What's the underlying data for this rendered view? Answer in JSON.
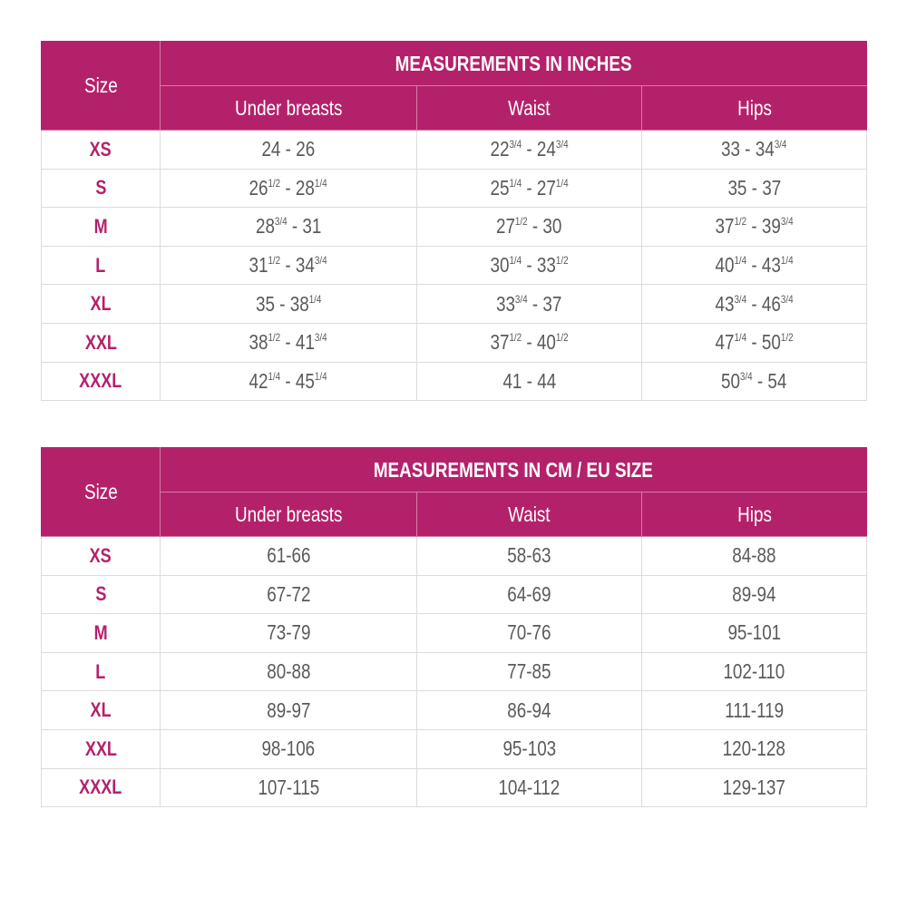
{
  "colors": {
    "accent": "#b4216b",
    "text": "#5a5a5a"
  },
  "tables": [
    {
      "size_header": "Size",
      "group_header": "MEASUREMENTS IN INCHES",
      "columns": [
        "Under breasts",
        "Waist",
        "Hips"
      ],
      "rows": [
        {
          "size": "XS",
          "cells": [
            [
              {
                "n": "24",
                "f": ""
              },
              {
                "n": "26",
                "f": ""
              }
            ],
            [
              {
                "n": "22",
                "f": "3/4"
              },
              {
                "n": "24",
                "f": "3/4"
              }
            ],
            [
              {
                "n": "33",
                "f": ""
              },
              {
                "n": "34",
                "f": "3/4"
              }
            ]
          ]
        },
        {
          "size": "S",
          "cells": [
            [
              {
                "n": "26",
                "f": "1/2"
              },
              {
                "n": "28",
                "f": "1/4"
              }
            ],
            [
              {
                "n": "25",
                "f": "1/4"
              },
              {
                "n": "27",
                "f": "1/4"
              }
            ],
            [
              {
                "n": "35",
                "f": ""
              },
              {
                "n": "37",
                "f": ""
              }
            ]
          ]
        },
        {
          "size": "M",
          "cells": [
            [
              {
                "n": "28",
                "f": "3/4"
              },
              {
                "n": "31",
                "f": ""
              }
            ],
            [
              {
                "n": "27",
                "f": "1/2"
              },
              {
                "n": "30",
                "f": ""
              }
            ],
            [
              {
                "n": "37",
                "f": "1/2"
              },
              {
                "n": "39",
                "f": "3/4"
              }
            ]
          ]
        },
        {
          "size": "L",
          "cells": [
            [
              {
                "n": "31",
                "f": "1/2"
              },
              {
                "n": "34",
                "f": "3/4"
              }
            ],
            [
              {
                "n": "30",
                "f": "1/4"
              },
              {
                "n": "33",
                "f": "1/2"
              }
            ],
            [
              {
                "n": "40",
                "f": "1/4"
              },
              {
                "n": "43",
                "f": "1/4"
              }
            ]
          ]
        },
        {
          "size": "XL",
          "cells": [
            [
              {
                "n": "35",
                "f": ""
              },
              {
                "n": "38",
                "f": "1/4"
              }
            ],
            [
              {
                "n": "33",
                "f": "3/4"
              },
              {
                "n": "37",
                "f": ""
              }
            ],
            [
              {
                "n": "43",
                "f": "3/4"
              },
              {
                "n": "46",
                "f": "3/4"
              }
            ]
          ]
        },
        {
          "size": "XXL",
          "cells": [
            [
              {
                "n": "38",
                "f": "1/2"
              },
              {
                "n": "41",
                "f": "3/4"
              }
            ],
            [
              {
                "n": "37",
                "f": "1/2"
              },
              {
                "n": "40",
                "f": "1/2"
              }
            ],
            [
              {
                "n": "47",
                "f": "1/4"
              },
              {
                "n": "50",
                "f": "1/2"
              }
            ]
          ]
        },
        {
          "size": "XXXL",
          "cells": [
            [
              {
                "n": "42",
                "f": "1/4"
              },
              {
                "n": "45",
                "f": "1/4"
              }
            ],
            [
              {
                "n": "41",
                "f": ""
              },
              {
                "n": "44",
                "f": ""
              }
            ],
            [
              {
                "n": "50",
                "f": "3/4"
              },
              {
                "n": "54",
                "f": ""
              }
            ]
          ]
        }
      ],
      "separator": " - "
    },
    {
      "size_header": "Size",
      "group_header": "MEASUREMENTS IN CM / EU SIZE",
      "columns": [
        "Under breasts",
        "Waist",
        "Hips"
      ],
      "rows": [
        {
          "size": "XS",
          "values": [
            "61-66",
            "58-63",
            "84-88"
          ]
        },
        {
          "size": "S",
          "values": [
            "67-72",
            "64-69",
            "89-94"
          ]
        },
        {
          "size": "M",
          "values": [
            "73-79",
            "70-76",
            "95-101"
          ]
        },
        {
          "size": "L",
          "values": [
            "80-88",
            "77-85",
            "102-110"
          ]
        },
        {
          "size": "XL",
          "values": [
            "89-97",
            "86-94",
            "111-119"
          ]
        },
        {
          "size": "XXL",
          "values": [
            "98-106",
            "95-103",
            "120-128"
          ]
        },
        {
          "size": "XXXL",
          "values": [
            "107-115",
            "104-112",
            "129-137"
          ]
        }
      ]
    }
  ]
}
